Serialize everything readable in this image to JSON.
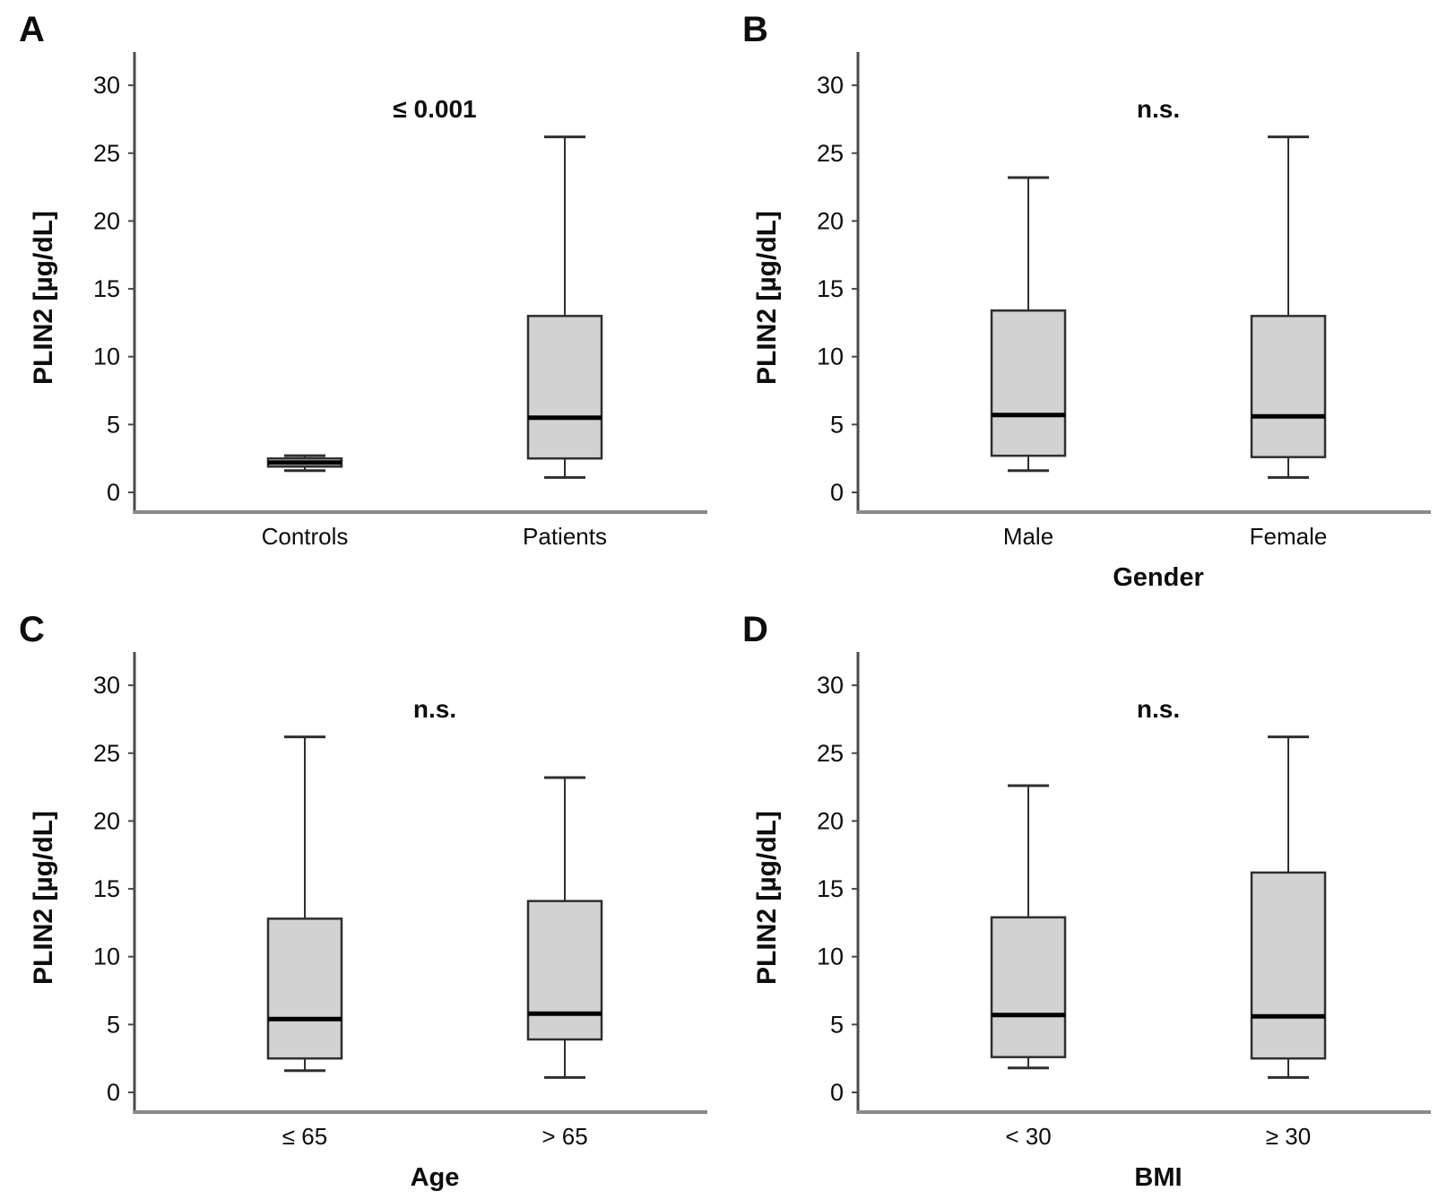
{
  "figure": {
    "background": "#ffffff",
    "colors": {
      "box_fill": "#d2d2d2",
      "box_stroke": "#2f2f2f",
      "median": "#000000",
      "whisker": "#2f2f2f",
      "y_axis": "#4a4a4a",
      "x_axis": "#8a8a8a",
      "text": "#0d0d0d"
    }
  },
  "chart_data": [
    {
      "panel": "A",
      "type": "boxplot",
      "annotation": "≤ 0.001",
      "ylabel": "PLIN2 [µg/dL]",
      "x_axis_title": "",
      "ylim": [
        0,
        32
      ],
      "y_ticks": [
        0,
        5,
        10,
        15,
        20,
        25,
        30
      ],
      "categories": [
        "Controls",
        "Patients"
      ],
      "boxes": [
        {
          "category": "Controls",
          "whisker_low": 1.6,
          "q1": 1.9,
          "median": 2.2,
          "q3": 2.5,
          "whisker_high": 2.7
        },
        {
          "category": "Patients",
          "whisker_low": 1.1,
          "q1": 2.5,
          "median": 5.5,
          "q3": 13.0,
          "whisker_high": 26.2
        }
      ]
    },
    {
      "panel": "B",
      "type": "boxplot",
      "annotation": "n.s.",
      "ylabel": "PLIN2 [µg/dL]",
      "x_axis_title": "Gender",
      "ylim": [
        0,
        32
      ],
      "y_ticks": [
        0,
        5,
        10,
        15,
        20,
        25,
        30
      ],
      "categories": [
        "Male",
        "Female"
      ],
      "boxes": [
        {
          "category": "Male",
          "whisker_low": 1.6,
          "q1": 2.7,
          "median": 5.7,
          "q3": 13.4,
          "whisker_high": 23.2
        },
        {
          "category": "Female",
          "whisker_low": 1.1,
          "q1": 2.6,
          "median": 5.6,
          "q3": 13.0,
          "whisker_high": 26.2
        }
      ]
    },
    {
      "panel": "C",
      "type": "boxplot",
      "annotation": "n.s.",
      "ylabel": "PLIN2 [µg/dL]",
      "x_axis_title": "Age",
      "ylim": [
        0,
        32
      ],
      "y_ticks": [
        0,
        5,
        10,
        15,
        20,
        25,
        30
      ],
      "categories": [
        "≤ 65",
        "> 65"
      ],
      "boxes": [
        {
          "category": "≤ 65",
          "whisker_low": 1.6,
          "q1": 2.5,
          "median": 5.4,
          "q3": 12.8,
          "whisker_high": 26.2
        },
        {
          "category": "> 65",
          "whisker_low": 1.1,
          "q1": 3.9,
          "median": 5.8,
          "q3": 14.1,
          "whisker_high": 23.2
        }
      ]
    },
    {
      "panel": "D",
      "type": "boxplot",
      "annotation": "n.s.",
      "ylabel": "PLIN2 [µg/dL]",
      "x_axis_title": "BMI",
      "ylim": [
        0,
        32
      ],
      "y_ticks": [
        0,
        5,
        10,
        15,
        20,
        25,
        30
      ],
      "categories": [
        "< 30",
        "≥ 30"
      ],
      "boxes": [
        {
          "category": "< 30",
          "whisker_low": 1.8,
          "q1": 2.6,
          "median": 5.7,
          "q3": 12.9,
          "whisker_high": 22.6
        },
        {
          "category": "≥ 30",
          "whisker_low": 1.1,
          "q1": 2.5,
          "median": 5.6,
          "q3": 16.2,
          "whisker_high": 26.2
        }
      ]
    }
  ]
}
